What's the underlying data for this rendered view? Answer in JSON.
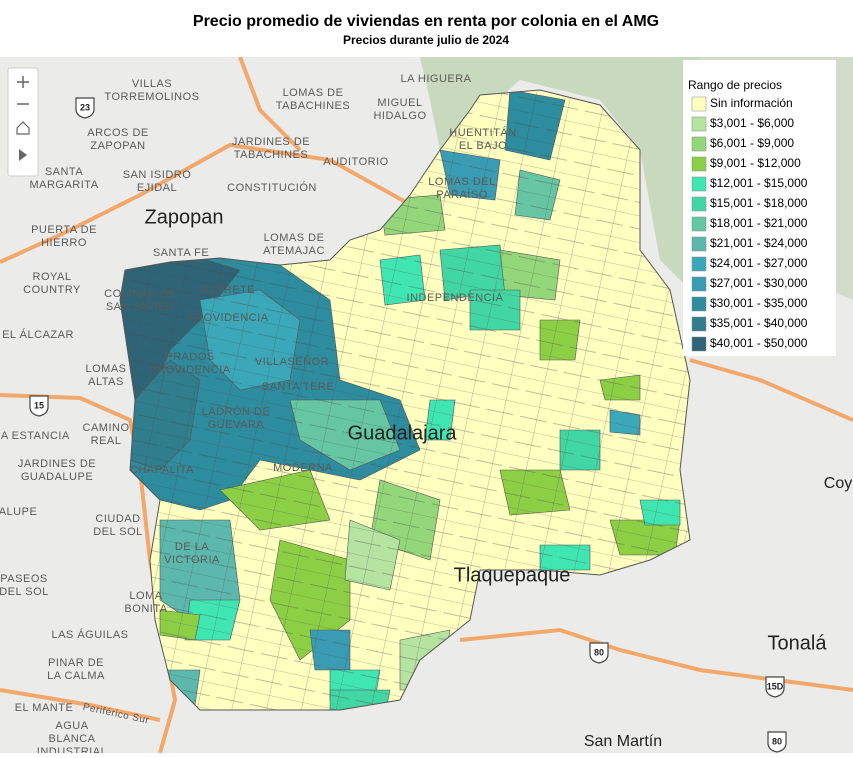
{
  "header": {
    "title": "Precio promedio de viviendas en renta por colonia en el AMG",
    "subtitle": "Precios durante julio de 2024"
  },
  "legend": {
    "title": "Rango de precios",
    "items": [
      {
        "label": "Sin información",
        "color": "#ffffbf"
      },
      {
        "label": "$3,001 - $6,000",
        "color": "#b5e3a0"
      },
      {
        "label": "$6,001 - $9,000",
        "color": "#93d77a"
      },
      {
        "label": "$9,001 - $12,000",
        "color": "#8ccf45"
      },
      {
        "label": "$12,001 - $15,000",
        "color": "#3fe6b2"
      },
      {
        "label": "$15,001 - $18,000",
        "color": "#41d6a4"
      },
      {
        "label": "$18,001 - $21,000",
        "color": "#66c6a4"
      },
      {
        "label": "$21,001 - $24,000",
        "color": "#5cb8ac"
      },
      {
        "label": "$24,001 - $27,000",
        "color": "#3aa8b8"
      },
      {
        "label": "$27,001 - $30,000",
        "color": "#399cb3"
      },
      {
        "label": "$30,001 - $35,000",
        "color": "#2d8c9e"
      },
      {
        "label": "$35,001 - $40,000",
        "color": "#2f7d8d"
      },
      {
        "label": "$40,001 - $50,000",
        "color": "#2e6475"
      }
    ]
  },
  "map": {
    "labels": [
      {
        "lines": [
          "LA HIGUERA"
        ]
      },
      {
        "lines": [
          "LOMAS DE",
          "TABACHINES"
        ]
      },
      {
        "lines": [
          "VILLAS",
          "TORREMOLINOS"
        ]
      },
      {
        "lines": [
          "MIGUEL",
          "HIDALGO"
        ]
      },
      {
        "lines": [
          "ARCOS DE",
          "ZAPOPAN"
        ]
      },
      {
        "lines": [
          "JARDINES DE",
          "TABACHINES"
        ]
      },
      {
        "lines": [
          "AUDITORIO"
        ]
      },
      {
        "lines": [
          "HUENTITÁN",
          "EL BAJO"
        ]
      },
      {
        "lines": [
          "SANTA",
          "MARGARITA"
        ]
      },
      {
        "lines": [
          "SAN ISIDRO",
          "EJIDAL"
        ]
      },
      {
        "lines": [
          "CONSTITUCIÓN"
        ]
      },
      {
        "lines": [
          "LOMAS DEL",
          "PARAÍSO"
        ]
      },
      {
        "lines": [
          "Zapopan"
        ]
      },
      {
        "lines": [
          "PUERTA DE",
          "HIERRO"
        ]
      },
      {
        "lines": [
          "SANTA FE"
        ]
      },
      {
        "lines": [
          "LOMAS DE",
          "ATEMAJAC"
        ]
      },
      {
        "lines": [
          "ROYAL",
          "COUNTRY"
        ]
      },
      {
        "lines": [
          "COLINAS DE",
          "SAN JAVIER"
        ]
      },
      {
        "lines": [
          "ALDRETE"
        ]
      },
      {
        "lines": [
          "INDEPENDENCIA"
        ]
      },
      {
        "lines": [
          "EL ÁLCAZAR"
        ]
      },
      {
        "lines": [
          "PROVIDENCIA"
        ]
      },
      {
        "lines": [
          "PRADOS",
          "PROVIDENCIA"
        ]
      },
      {
        "lines": [
          "LOMAS",
          "ALTAS"
        ]
      },
      {
        "lines": [
          "VILLASEÑOR"
        ]
      },
      {
        "lines": [
          "SANTA TERE"
        ]
      },
      {
        "lines": [
          "CAMINO",
          "REAL"
        ]
      },
      {
        "lines": [
          "LADRÓN DE",
          "GUEVARA"
        ]
      },
      {
        "lines": [
          "LA ESTANCIA"
        ]
      },
      {
        "lines": [
          "Guadalajara"
        ]
      },
      {
        "lines": [
          "JARDINES DE",
          "GUADALUPE"
        ]
      },
      {
        "lines": [
          "CHAPALITA"
        ]
      },
      {
        "lines": [
          "MODERNA"
        ]
      },
      {
        "lines": [
          "ALUPE"
        ]
      },
      {
        "lines": [
          "CIUDAD",
          "DEL SOL"
        ]
      },
      {
        "lines": [
          "DE LA",
          "VICTORIA"
        ]
      },
      {
        "lines": [
          "Tlaquepaque"
        ]
      },
      {
        "lines": [
          "PASEOS",
          "DEL SOL"
        ]
      },
      {
        "lines": [
          "LOMA",
          "BONITA"
        ]
      },
      {
        "lines": [
          "LAS ÁGUILAS"
        ]
      },
      {
        "lines": [
          "Tonalá"
        ]
      },
      {
        "lines": [
          "PINAR DE",
          "LA CALMA"
        ]
      },
      {
        "lines": [
          "EL MANTE"
        ]
      },
      {
        "lines": [
          "AGUA",
          "BLANCA",
          "INDUSTRIAL"
        ]
      },
      {
        "lines": [
          "San Martín"
        ]
      },
      {
        "lines": [
          "Coy"
        ]
      },
      {
        "lines": [
          "Periférico Sur"
        ]
      }
    ],
    "roads": [
      "23",
      "15",
      "80",
      "15D",
      "80"
    ]
  }
}
